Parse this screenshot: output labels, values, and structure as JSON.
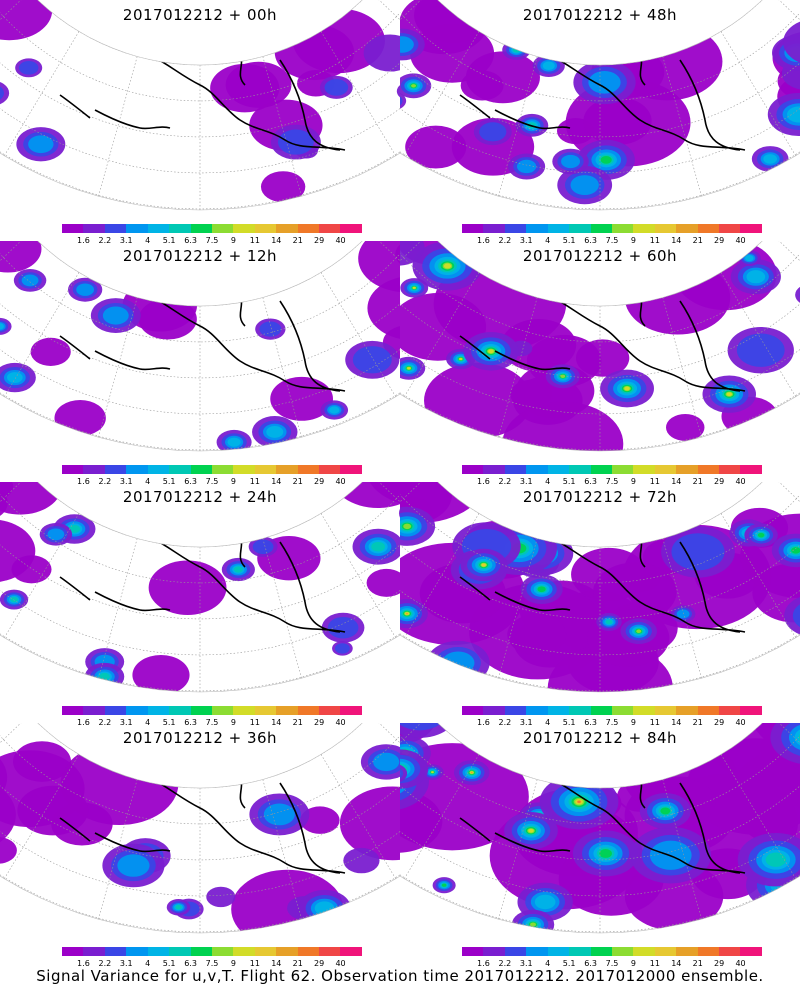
{
  "footer_caption": "Signal Variance for u,v,T. Flight 62. Observation time 2017012212. 2017012000 ensemble.",
  "colorbar": {
    "colors": [
      "#9b00c8",
      "#7a1ed0",
      "#3a46e6",
      "#0096f0",
      "#00b4e6",
      "#00c8b4",
      "#00d250",
      "#8cdc32",
      "#d2dc28",
      "#e6c832",
      "#e6a028",
      "#f07828",
      "#f04646",
      "#f0147a"
    ],
    "labels": [
      "1.6",
      "2.2",
      "3.1",
      "4",
      "5.1",
      "6.3",
      "7.5",
      "9",
      "11",
      "14",
      "21",
      "29",
      "40"
    ]
  },
  "panels": [
    {
      "id": "p00",
      "title": "2017012212 + 00h",
      "intensity": 0.15
    },
    {
      "id": "p48",
      "title": "2017012212 + 48h",
      "intensity": 0.55
    },
    {
      "id": "p12",
      "title": "2017012212 + 12h",
      "intensity": 0.25
    },
    {
      "id": "p60",
      "title": "2017012212 + 60h",
      "intensity": 0.7
    },
    {
      "id": "p24",
      "title": "2017012212 + 24h",
      "intensity": 0.35
    },
    {
      "id": "p72",
      "title": "2017012212 + 72h",
      "intensity": 0.85
    },
    {
      "id": "p36",
      "title": "2017012212 + 36h",
      "intensity": 0.45
    },
    {
      "id": "p84",
      "title": "2017012212 + 84h",
      "intensity": 1.0
    }
  ]
}
